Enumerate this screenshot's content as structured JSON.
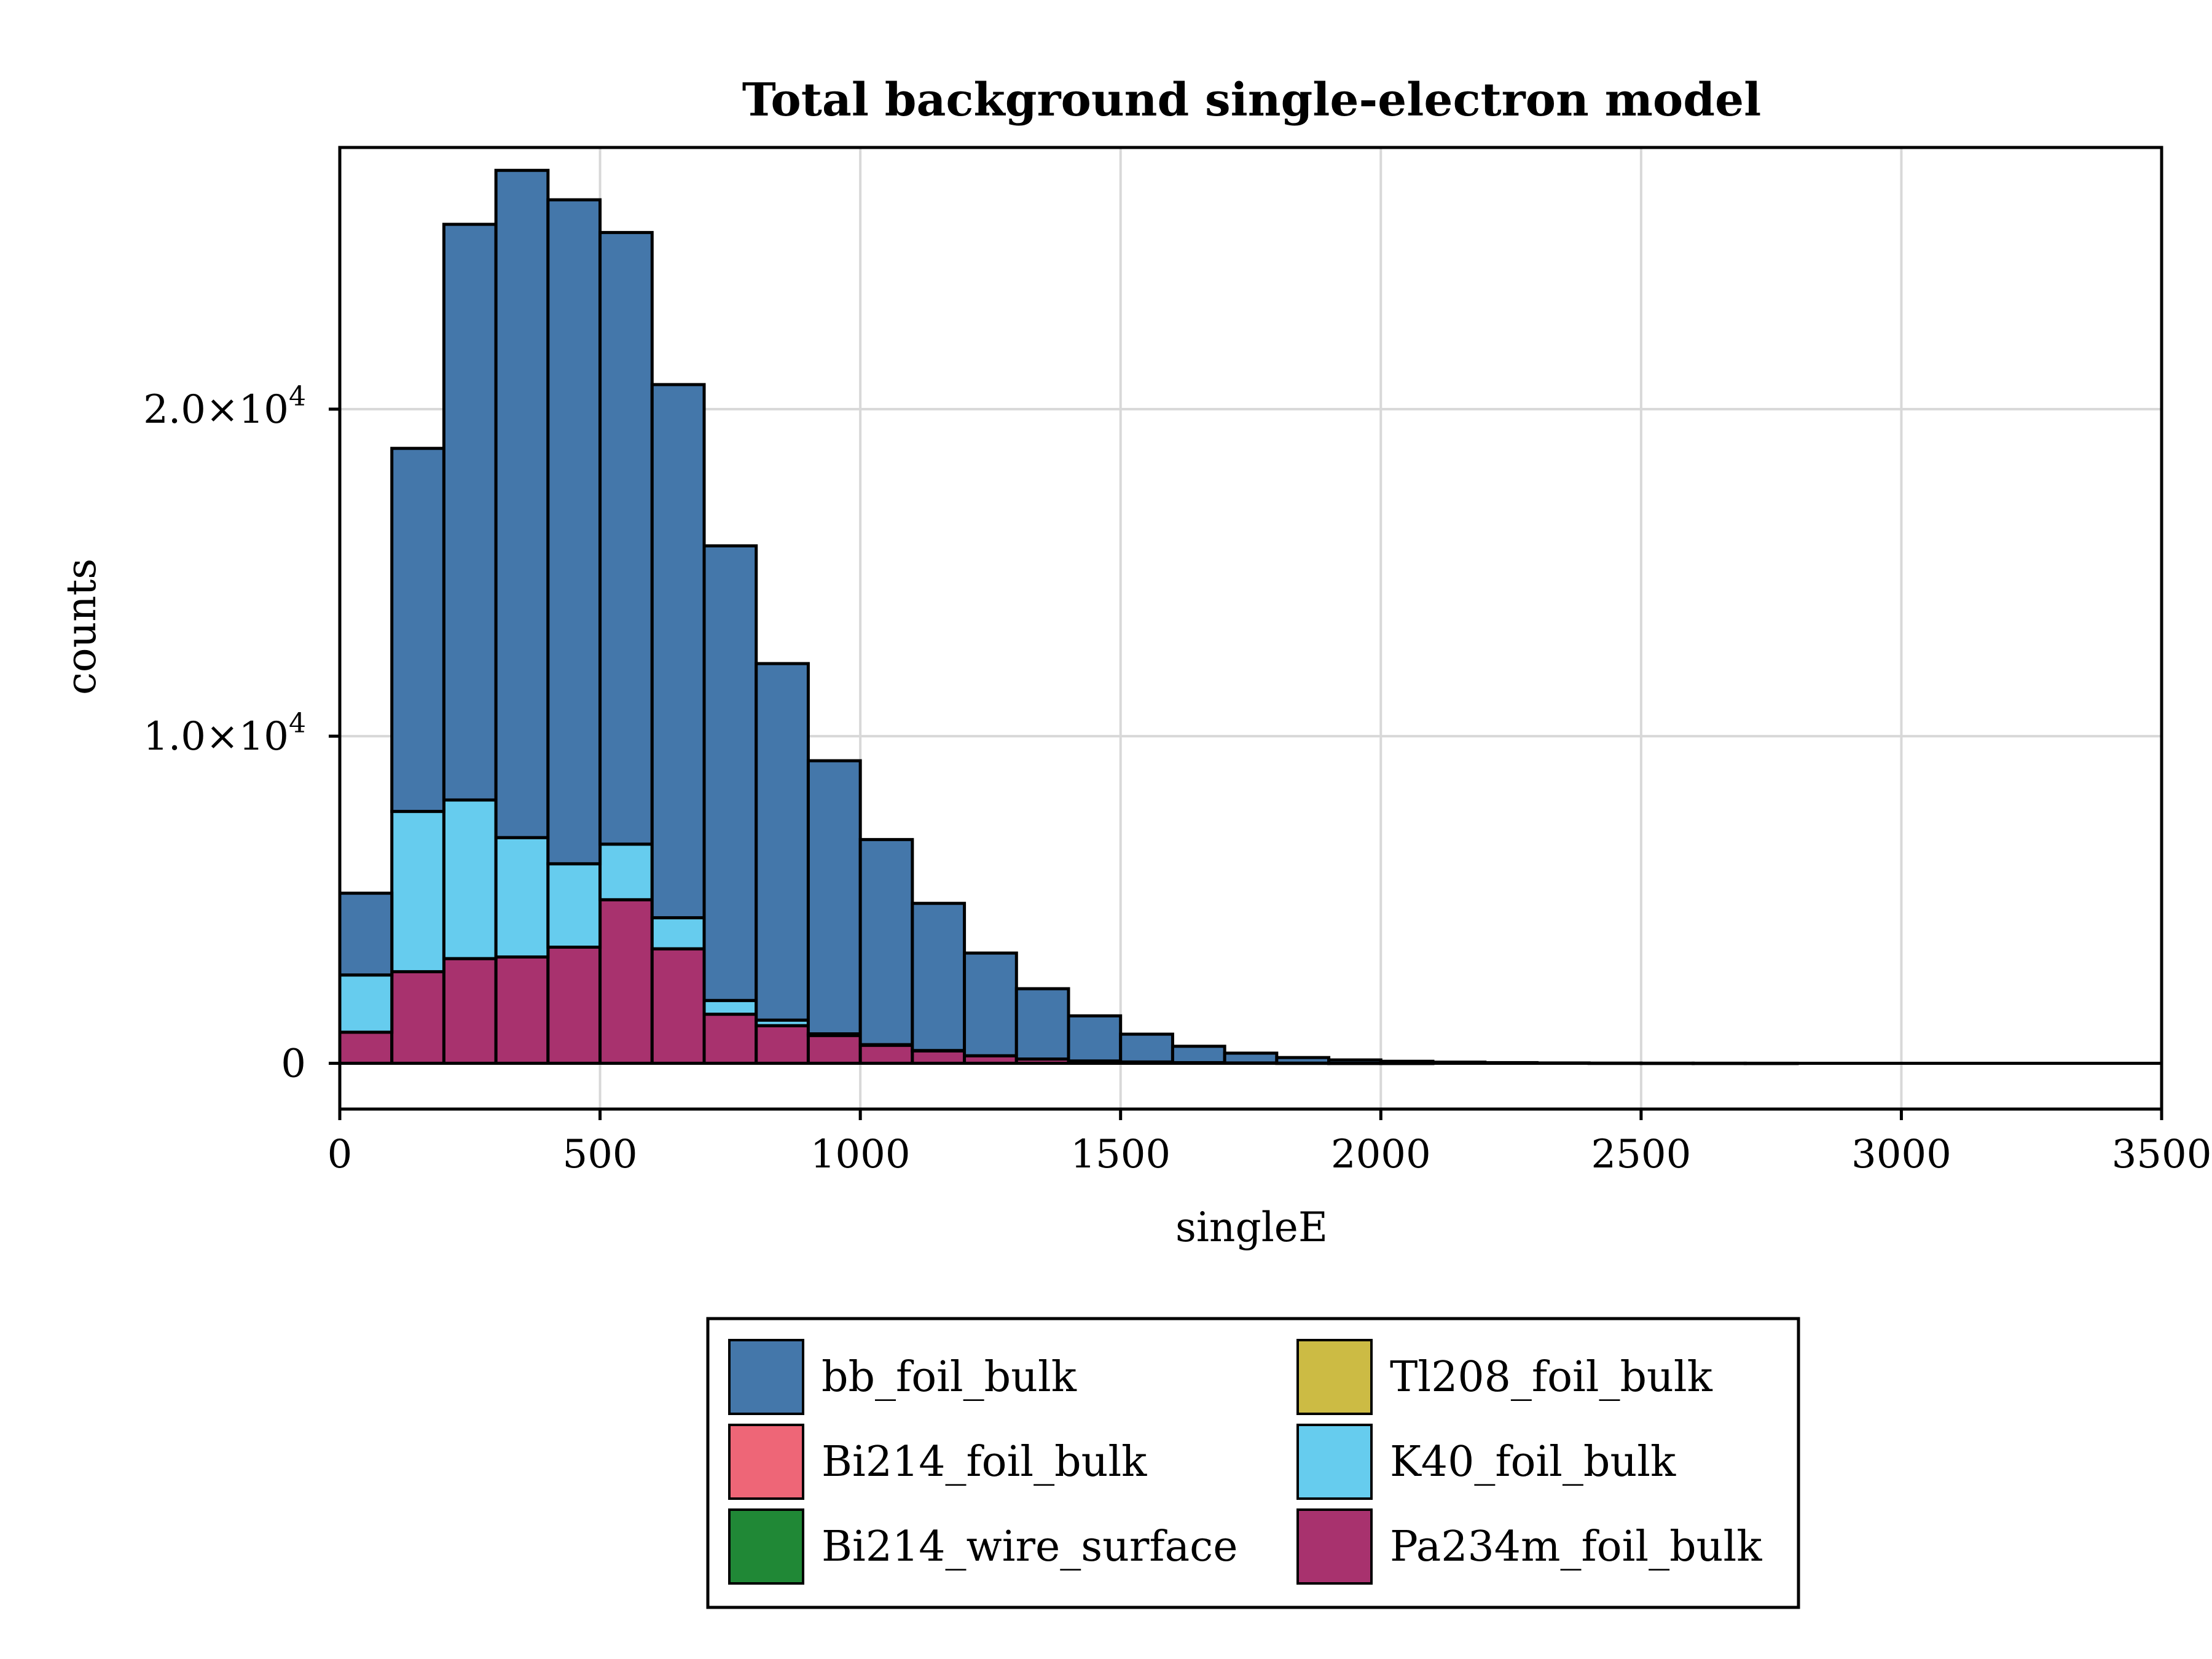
{
  "chart_data": {
    "type": "bar",
    "stacked": true,
    "title": "Total background single-electron model",
    "xlabel": "singleE",
    "ylabel": "counts",
    "xlim": [
      0,
      3500
    ],
    "ylim": [
      -1400,
      28000
    ],
    "xticks": [
      {
        "value": 0,
        "label": "0"
      },
      {
        "value": 500,
        "label": "500"
      },
      {
        "value": 1000,
        "label": "1000"
      },
      {
        "value": 1500,
        "label": "1500"
      },
      {
        "value": 2000,
        "label": "2000"
      },
      {
        "value": 2500,
        "label": "2500"
      },
      {
        "value": 3000,
        "label": "3000"
      },
      {
        "value": 3500,
        "label": "3500"
      }
    ],
    "yticks": [
      {
        "value": 0,
        "label": "0",
        "mant": "",
        "exp": ""
      },
      {
        "value": 10000,
        "label": "1.0×10⁴",
        "mant": "1.0×10",
        "exp": "4"
      },
      {
        "value": 20000,
        "label": "2.0×10⁴",
        "mant": "2.0×10",
        "exp": "4"
      }
    ],
    "grid": true,
    "legend_position": "bottom-center",
    "bin_width": 100,
    "bin_edges_start": 0,
    "series": [
      {
        "name": "Pa234m_foil_bulk",
        "color": "#A8326E",
        "values": [
          950,
          2800,
          3200,
          3250,
          3550,
          5000,
          3500,
          1500,
          1150,
          850,
          550,
          380,
          230,
          130,
          70,
          40,
          20,
          10,
          5,
          2,
          1,
          0,
          0,
          0,
          0,
          0,
          0,
          0,
          0,
          0,
          0,
          0,
          0,
          0,
          0
        ]
      },
      {
        "name": "Bi214_wire_surface",
        "color": "#208836",
        "values": [
          0,
          0,
          0,
          0,
          0,
          0,
          0,
          0,
          0,
          0,
          0,
          0,
          0,
          0,
          0,
          0,
          0,
          0,
          0,
          0,
          0,
          0,
          0,
          0,
          0,
          0,
          0,
          0,
          0,
          0,
          0,
          0,
          0,
          0,
          0
        ]
      },
      {
        "name": "Bi214_foil_bulk",
        "color": "#EE6677",
        "values": [
          0,
          0,
          0,
          0,
          0,
          0,
          0,
          0,
          0,
          0,
          0,
          0,
          0,
          0,
          0,
          0,
          0,
          0,
          0,
          0,
          0,
          0,
          0,
          0,
          0,
          0,
          0,
          0,
          0,
          0,
          0,
          0,
          0,
          0,
          0
        ]
      },
      {
        "name": "K40_foil_bulk",
        "color": "#66CCEE",
        "values": [
          1750,
          4900,
          4850,
          3650,
          2550,
          1700,
          950,
          420,
          170,
          50,
          20,
          10,
          0,
          0,
          0,
          0,
          0,
          0,
          0,
          0,
          0,
          0,
          0,
          0,
          0,
          0,
          0,
          0,
          0,
          0,
          0,
          0,
          0,
          0,
          0
        ]
      },
      {
        "name": "Tl208_foil_bulk",
        "color": "#CCBB44",
        "values": [
          0,
          0,
          0,
          0,
          0,
          0,
          0,
          0,
          0,
          0,
          0,
          0,
          0,
          0,
          0,
          0,
          0,
          0,
          0,
          0,
          0,
          0,
          0,
          0,
          0,
          0,
          0,
          0,
          0,
          0,
          0,
          0,
          0,
          0,
          0
        ]
      },
      {
        "name": "bb_foil_bulk",
        "color": "#4477AA",
        "values": [
          2500,
          11100,
          17600,
          20400,
          20300,
          18700,
          16300,
          13900,
          10900,
          8350,
          6270,
          4500,
          3140,
          2150,
          1380,
          850,
          500,
          300,
          170,
          100,
          60,
          35,
          20,
          10,
          5,
          3,
          2,
          1,
          0,
          0,
          0,
          0,
          0,
          0,
          0
        ]
      }
    ],
    "legend": {
      "columns": [
        [
          "bb_foil_bulk",
          "Bi214_foil_bulk",
          "Bi214_wire_surface"
        ],
        [
          "Tl208_foil_bulk",
          "K40_foil_bulk",
          "Pa234m_foil_bulk"
        ]
      ]
    }
  }
}
